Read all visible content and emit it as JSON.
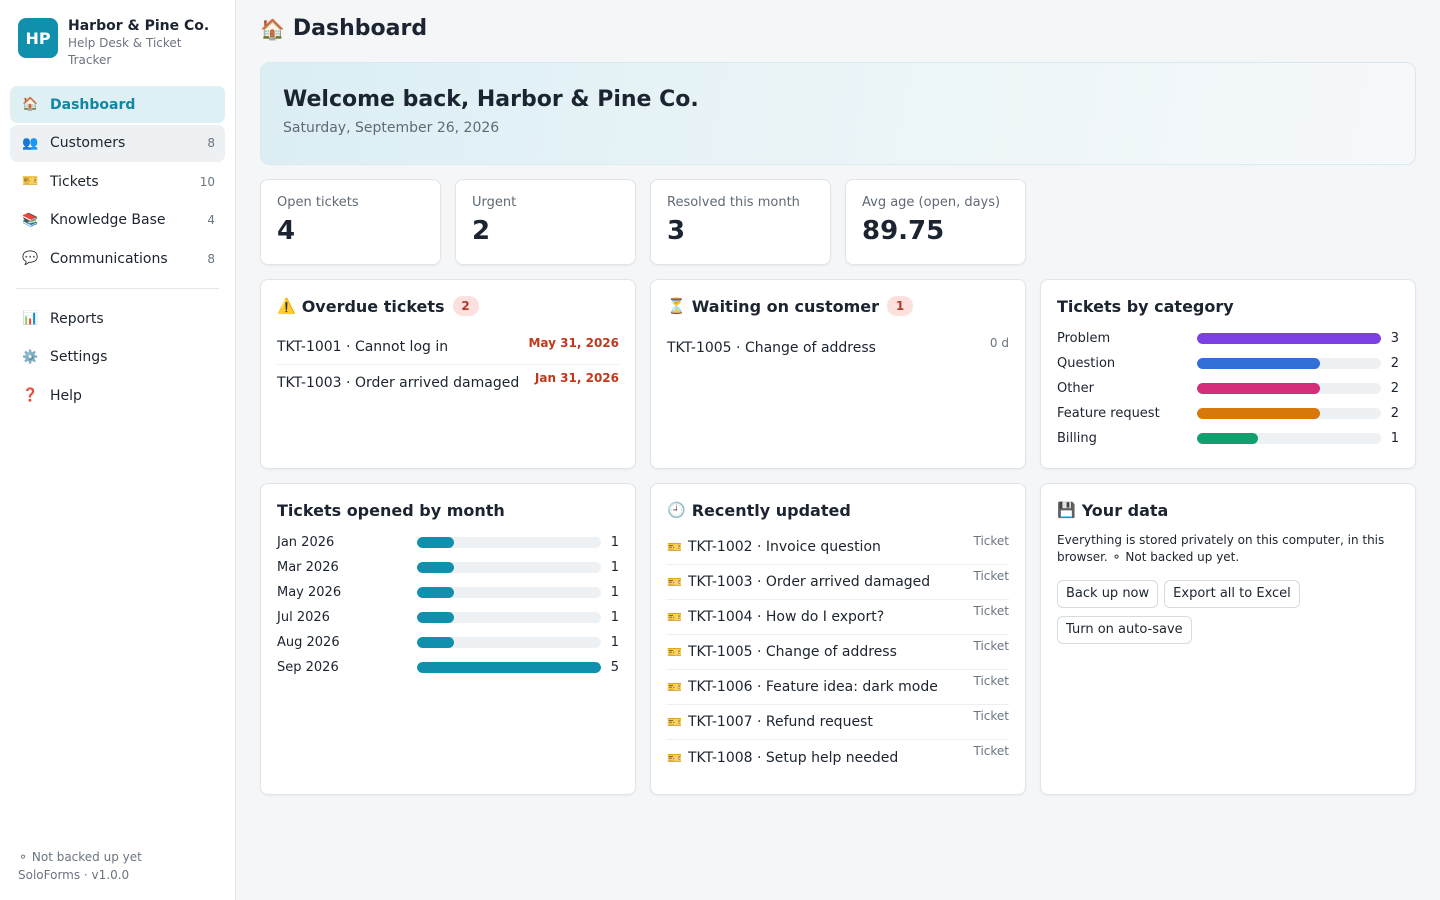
{
  "brand": {
    "initials": "HP",
    "name": "Harbor & Pine Co.",
    "subtitle": "Help Desk & Ticket Tracker"
  },
  "nav": {
    "main": [
      {
        "icon": "🏠",
        "icon_name": "home-icon",
        "label": "Dashboard",
        "count": ""
      },
      {
        "icon": "👥",
        "icon_name": "customers-icon",
        "label": "Customers",
        "count": "8"
      },
      {
        "icon": "🎫",
        "icon_name": "ticket-icon",
        "label": "Tickets",
        "count": "10"
      },
      {
        "icon": "📚",
        "icon_name": "books-icon",
        "label": "Knowledge Base",
        "count": "4"
      },
      {
        "icon": "💬",
        "icon_name": "chat-icon",
        "label": "Communications",
        "count": "8"
      }
    ],
    "secondary": [
      {
        "icon": "📊",
        "icon_name": "chart-icon",
        "label": "Reports"
      },
      {
        "icon": "⚙️",
        "icon_name": "gear-icon",
        "label": "Settings"
      },
      {
        "icon": "❓",
        "icon_name": "help-icon",
        "label": "Help"
      }
    ]
  },
  "sidebar_footer": {
    "backup_status": "⚬ Not backed up yet",
    "version": "SoloForms · v1.0.0"
  },
  "header": {
    "icon": "🏠",
    "title": "Dashboard"
  },
  "welcome": {
    "title": "Welcome back, Harbor & Pine Co.",
    "date": "Saturday, September 26, 2026"
  },
  "stats": [
    {
      "label": "Open tickets",
      "value": "4"
    },
    {
      "label": "Urgent",
      "value": "2"
    },
    {
      "label": "Resolved this month",
      "value": "3"
    },
    {
      "label": "Avg age (open, days)",
      "value": "89.75"
    }
  ],
  "overdue": {
    "icon": "⚠️",
    "title": "Overdue tickets",
    "count": "2",
    "items": [
      {
        "ticket": "TKT-1001 · Cannot log in",
        "due": "May 31, 2026"
      },
      {
        "ticket": "TKT-1003 · Order arrived damaged",
        "due": "Jan 31, 2026"
      }
    ]
  },
  "waiting": {
    "icon": "⏳",
    "title": "Waiting on customer",
    "count": "1",
    "items": [
      {
        "ticket": "TKT-1005 · Change of address",
        "age": "0 d"
      }
    ]
  },
  "by_category": {
    "title": "Tickets by category",
    "items": [
      {
        "label": "Problem",
        "value": 3,
        "color": "#7b3fe4"
      },
      {
        "label": "Question",
        "value": 2,
        "color": "#2f6fd6"
      },
      {
        "label": "Other",
        "value": 2,
        "color": "#d42e7b"
      },
      {
        "label": "Feature request",
        "value": 2,
        "color": "#d9780a"
      },
      {
        "label": "Billing",
        "value": 1,
        "color": "#12a06e"
      }
    ]
  },
  "by_month": {
    "title": "Tickets opened by month",
    "color": "#1190ad",
    "items": [
      {
        "label": "Jan 2026",
        "value": 1
      },
      {
        "label": "Mar 2026",
        "value": 1
      },
      {
        "label": "May 2026",
        "value": 1
      },
      {
        "label": "Jul 2026",
        "value": 1
      },
      {
        "label": "Aug 2026",
        "value": 1
      },
      {
        "label": "Sep 2026",
        "value": 5
      }
    ]
  },
  "recent": {
    "icon": "🕘",
    "title": "Recently updated",
    "item_icon": "🎫",
    "items": [
      {
        "ticket": "TKT-1002 · Invoice question",
        "kind": "Ticket"
      },
      {
        "ticket": "TKT-1003 · Order arrived damaged",
        "kind": "Ticket"
      },
      {
        "ticket": "TKT-1004 · How do I export?",
        "kind": "Ticket"
      },
      {
        "ticket": "TKT-1005 · Change of address",
        "kind": "Ticket"
      },
      {
        "ticket": "TKT-1006 · Feature idea: dark mode",
        "kind": "Ticket"
      },
      {
        "ticket": "TKT-1007 · Refund request",
        "kind": "Ticket"
      },
      {
        "ticket": "TKT-1008 · Setup help needed",
        "kind": "Ticket"
      }
    ]
  },
  "your_data": {
    "icon": "💾",
    "title": "Your data",
    "text": "Everything is stored privately on this computer, in this browser. ⚬ Not backed up yet.",
    "buttons": {
      "backup": "Back up now",
      "export": "Export all to Excel",
      "autosave": "Turn on auto-save"
    }
  }
}
